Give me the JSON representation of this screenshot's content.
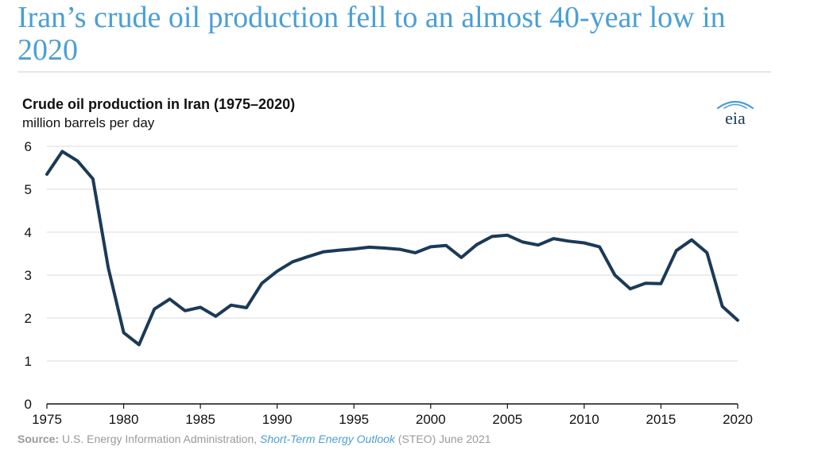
{
  "headline": "Iran’s crude oil production fell to an almost 40-year low in 2020",
  "logo_text": "eia",
  "colors": {
    "headline": "#4a9fd6",
    "line": "#1b3a57",
    "grid": "#d9d9d9",
    "axis": "#111111",
    "source": "#9a9a9a",
    "link": "#4a9fd6"
  },
  "source": {
    "label": "Source:",
    "text_before": " U.S. Energy Information Administration, ",
    "report": "Short-Term Energy Outlook",
    "text_after": " (STEO) June 2021"
  },
  "chart_data": {
    "type": "line",
    "title": "Crude oil production in Iran (1975–2020)",
    "units": "million barrels per day",
    "xlabel": "",
    "ylabel": "",
    "xlim": [
      1975,
      2020
    ],
    "ylim": [
      0,
      6
    ],
    "x_ticks": [
      1975,
      1980,
      1985,
      1990,
      1995,
      2000,
      2005,
      2010,
      2015,
      2020
    ],
    "y_ticks": [
      0,
      1,
      2,
      3,
      4,
      5,
      6
    ],
    "grid": "horizontal",
    "legend": "none",
    "series": [
      {
        "x": [
          1975,
          1976,
          1977,
          1978,
          1979,
          1980,
          1981,
          1982,
          1983,
          1984,
          1985,
          1986,
          1987,
          1988,
          1989,
          1990,
          1991,
          1992,
          1993,
          1994,
          1995,
          1996,
          1997,
          1998,
          1999,
          2000,
          2001,
          2002,
          2003,
          2004,
          2005,
          2006,
          2007,
          2008,
          2009,
          2010,
          2011,
          2012,
          2013,
          2014,
          2015,
          2016,
          2017,
          2018,
          2019,
          2020
        ],
        "values": [
          5.35,
          5.88,
          5.66,
          5.24,
          3.17,
          1.66,
          1.38,
          2.21,
          2.44,
          2.17,
          2.25,
          2.04,
          2.3,
          2.24,
          2.81,
          3.09,
          3.31,
          3.43,
          3.54,
          3.58,
          3.61,
          3.65,
          3.63,
          3.6,
          3.52,
          3.66,
          3.69,
          3.41,
          3.71,
          3.9,
          3.93,
          3.77,
          3.7,
          3.85,
          3.79,
          3.75,
          3.66,
          3.0,
          2.68,
          2.81,
          2.8,
          3.57,
          3.82,
          3.52,
          2.27,
          1.95
        ]
      }
    ]
  }
}
